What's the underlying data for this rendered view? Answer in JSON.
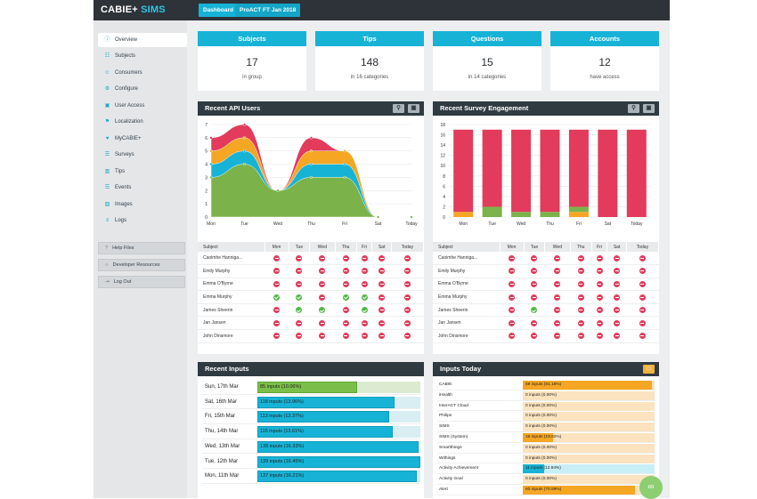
{
  "app": {
    "brand_main": "CABIE+",
    "brand_accent": "SIMS",
    "nav": [
      "Dashboard",
      "ProACT FT Jan 2018"
    ]
  },
  "sidebar": {
    "items": [
      {
        "label": "Overview",
        "icon": "info-icon"
      },
      {
        "label": "Subjects",
        "icon": "subjects-icon"
      },
      {
        "label": "Consumers",
        "icon": "consumers-icon"
      },
      {
        "label": "Configure",
        "icon": "gear-icon"
      },
      {
        "label": "User Access",
        "icon": "lock-icon"
      },
      {
        "label": "Localization",
        "icon": "flag-icon"
      },
      {
        "label": "MyCABIE+",
        "icon": "heart-icon"
      },
      {
        "label": "Surveys",
        "icon": "surveys-icon"
      },
      {
        "label": "Tips",
        "icon": "book-icon"
      },
      {
        "label": "Events",
        "icon": "events-icon"
      },
      {
        "label": "Images",
        "icon": "image-icon"
      },
      {
        "label": "Logs",
        "icon": "logs-icon"
      }
    ],
    "buttons": [
      {
        "label": "Help Files",
        "icon": "help-icon"
      },
      {
        "label": "Developer Resources",
        "icon": "code-icon"
      },
      {
        "label": "Log Out",
        "icon": "logout-icon"
      }
    ]
  },
  "stats": [
    {
      "title": "Subjects",
      "value": "17",
      "sub": "in group"
    },
    {
      "title": "Tips",
      "value": "148",
      "sub": "in 16 categories"
    },
    {
      "title": "Questions",
      "value": "15",
      "sub": "in 14 categories"
    },
    {
      "title": "Accounts",
      "value": "12",
      "sub": "have access"
    }
  ],
  "colors": {
    "cyan": "#17b3d6",
    "pink": "#e23b5b",
    "green": "#52b848",
    "orange": "#f5a623",
    "dark": "#2f3a41"
  },
  "panels": {
    "api_users": {
      "title": "Recent API Users"
    },
    "survey": {
      "title": "Recent Survey Engagement"
    },
    "recent_inputs": {
      "title": "Recent Inputs"
    },
    "inputs_today": {
      "title": "Inputs Today"
    }
  },
  "chart_data": [
    {
      "type": "area",
      "categories": [
        "Mon",
        "Tue",
        "Wed",
        "Thu",
        "Fri",
        "Sat",
        "Today"
      ],
      "ylim": [
        0,
        7
      ],
      "yticks": [
        0,
        1,
        2,
        3,
        4,
        5,
        6,
        7
      ],
      "series": [
        {
          "color": "#7bb34a",
          "values": [
            3,
            4,
            2,
            3,
            3,
            0,
            0
          ]
        },
        {
          "color": "#17b3d6",
          "values": [
            1,
            1,
            0,
            1,
            1,
            0,
            0
          ]
        },
        {
          "color": "#f5a623",
          "values": [
            1,
            1,
            0,
            1,
            1,
            0,
            0
          ]
        },
        {
          "color": "#e23b5b",
          "values": [
            1,
            1,
            0,
            1,
            0,
            0,
            0
          ]
        }
      ]
    },
    {
      "type": "bar",
      "categories": [
        "Mon",
        "Tue",
        "Wed",
        "Thu",
        "Fri",
        "Sat",
        "Today"
      ],
      "ylim": [
        0,
        18
      ],
      "yticks": [
        0,
        2,
        4,
        6,
        8,
        10,
        12,
        14,
        16,
        18
      ],
      "series": [
        {
          "color": "#f5a623",
          "values": [
            1,
            0,
            0,
            0,
            1,
            0,
            0
          ]
        },
        {
          "color": "#7bb34a",
          "values": [
            0,
            2,
            1,
            1,
            1,
            0,
            0
          ]
        },
        {
          "color": "#e23b5b",
          "values": [
            16,
            15,
            16,
            16,
            15,
            17,
            17
          ]
        }
      ]
    }
  ],
  "tables": {
    "columns": [
      "Subject",
      "Mon",
      "Tue",
      "Wed",
      "Thu",
      "Fri",
      "Sat",
      "Today"
    ],
    "api_rows": [
      {
        "name": "Caoimhe Hanniga...",
        "status": [
          "no",
          "no",
          "no",
          "no",
          "no",
          "no",
          "no"
        ]
      },
      {
        "name": "Emily Murphy",
        "status": [
          "no",
          "no",
          "no",
          "no",
          "no",
          "no",
          "no"
        ]
      },
      {
        "name": "Emma O'Byrne",
        "status": [
          "no",
          "no",
          "no",
          "no",
          "no",
          "no",
          "no"
        ]
      },
      {
        "name": "Emma Murphy",
        "status": [
          "yes",
          "yes",
          "no",
          "yes",
          "yes",
          "no",
          "no"
        ]
      },
      {
        "name": "James Sheerin",
        "status": [
          "no",
          "yes",
          "yes",
          "no",
          "yes",
          "no",
          "no"
        ]
      },
      {
        "name": "Jan Jansen",
        "status": [
          "no",
          "no",
          "no",
          "no",
          "no",
          "no",
          "no"
        ]
      },
      {
        "name": "John Dinsmore",
        "status": [
          "no",
          "no",
          "no",
          "no",
          "no",
          "no",
          "no"
        ]
      }
    ],
    "survey_rows": [
      {
        "name": "Caoimhe Hanniga...",
        "status": [
          "no",
          "no",
          "no",
          "no",
          "no",
          "no",
          "no"
        ]
      },
      {
        "name": "Emily Murphy",
        "status": [
          "no",
          "no",
          "no",
          "no",
          "no",
          "no",
          "no"
        ]
      },
      {
        "name": "Emma O'Byrne",
        "status": [
          "no",
          "no",
          "no",
          "no",
          "no",
          "no",
          "no"
        ]
      },
      {
        "name": "Emma Murphy",
        "status": [
          "no",
          "no",
          "no",
          "no",
          "no",
          "no",
          "no"
        ]
      },
      {
        "name": "James Sheerin",
        "status": [
          "no",
          "yes",
          "no",
          "no",
          "no",
          "no",
          "no"
        ]
      },
      {
        "name": "Jan Jansen",
        "status": [
          "no",
          "no",
          "no",
          "no",
          "no",
          "no",
          "no"
        ]
      },
      {
        "name": "John Dinsmore",
        "status": [
          "no",
          "no",
          "no",
          "no",
          "no",
          "no",
          "no"
        ]
      }
    ]
  },
  "recent_inputs": [
    {
      "day": "Sun, 17th Mar",
      "label": "85 inputs (10.06%)",
      "fraction": 0.61,
      "highlight": true
    },
    {
      "day": "Sat, 16th Mar",
      "label": "118 inputs (13.96%)",
      "fraction": 0.84,
      "highlight": false
    },
    {
      "day": "Fri, 15th Mar",
      "label": "113 inputs (13.37%)",
      "fraction": 0.81,
      "highlight": false
    },
    {
      "day": "Thu, 14th Mar",
      "label": "115 inputs (13.61%)",
      "fraction": 0.83,
      "highlight": false
    },
    {
      "day": "Wed, 13th Mar",
      "label": "138 inputs (16.33%)",
      "fraction": 0.99,
      "highlight": false
    },
    {
      "day": "Tue, 12th Mar",
      "label": "139 inputs (16.45%)",
      "fraction": 1.0,
      "highlight": false
    },
    {
      "day": "Mon, 11th Mar",
      "label": "137 inputs (16.21%)",
      "fraction": 0.98,
      "highlight": false
    }
  ],
  "inputs_today": [
    {
      "source": "CABIE",
      "label": "69 inputs (81.18%)",
      "fraction": 0.98,
      "color": "orange"
    },
    {
      "source": "iHealth",
      "label": "0 inputs (0.00%)",
      "fraction": 0,
      "color": "orange"
    },
    {
      "source": "InterACT Cloud",
      "label": "0 inputs (0.00%)",
      "fraction": 0,
      "color": "orange"
    },
    {
      "source": "Philips",
      "label": "0 inputs (0.00%)",
      "fraction": 0,
      "color": "orange"
    },
    {
      "source": "SIMS",
      "label": "0 inputs (0.00%)",
      "fraction": 0,
      "color": "orange"
    },
    {
      "source": "SIMS (System)",
      "label": "16 inputs (18.82%)",
      "fraction": 0.23,
      "color": "orange"
    },
    {
      "source": "Smartthings",
      "label": "0 inputs (0.00%)",
      "fraction": 0,
      "color": "orange"
    },
    {
      "source": "Withings",
      "label": "0 inputs (0.00%)",
      "fraction": 0,
      "color": "orange"
    },
    {
      "source": "Activity Achievement",
      "label": "11 inputs (12.94%)",
      "fraction": 0.16,
      "color": "blue"
    },
    {
      "source": "Activity Goal",
      "label": "0 inputs (0.00%)",
      "fraction": 0,
      "color": "orange"
    },
    {
      "source": "Alert",
      "label": "60 inputs (70.59%)",
      "fraction": 0.85,
      "color": "orange"
    }
  ]
}
